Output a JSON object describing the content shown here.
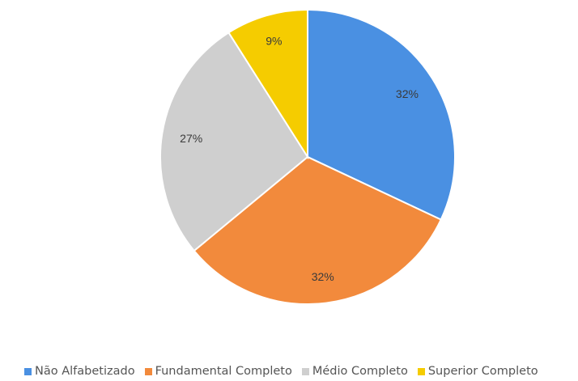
{
  "chart_data": {
    "type": "pie",
    "title": "",
    "categories": [
      "Não Alfabetizado",
      "Fundamental Completo",
      "Médio Completo",
      "Superior Completo"
    ],
    "values": [
      32,
      32,
      27,
      9
    ],
    "labels": [
      "32%",
      "32%",
      "27%",
      "9%"
    ],
    "colors": [
      "#4a90e2",
      "#f28a3c",
      "#cfcfcf",
      "#f5cc00"
    ],
    "legend_position": "bottom",
    "start_angle_deg": 0,
    "direction": "clockwise"
  }
}
